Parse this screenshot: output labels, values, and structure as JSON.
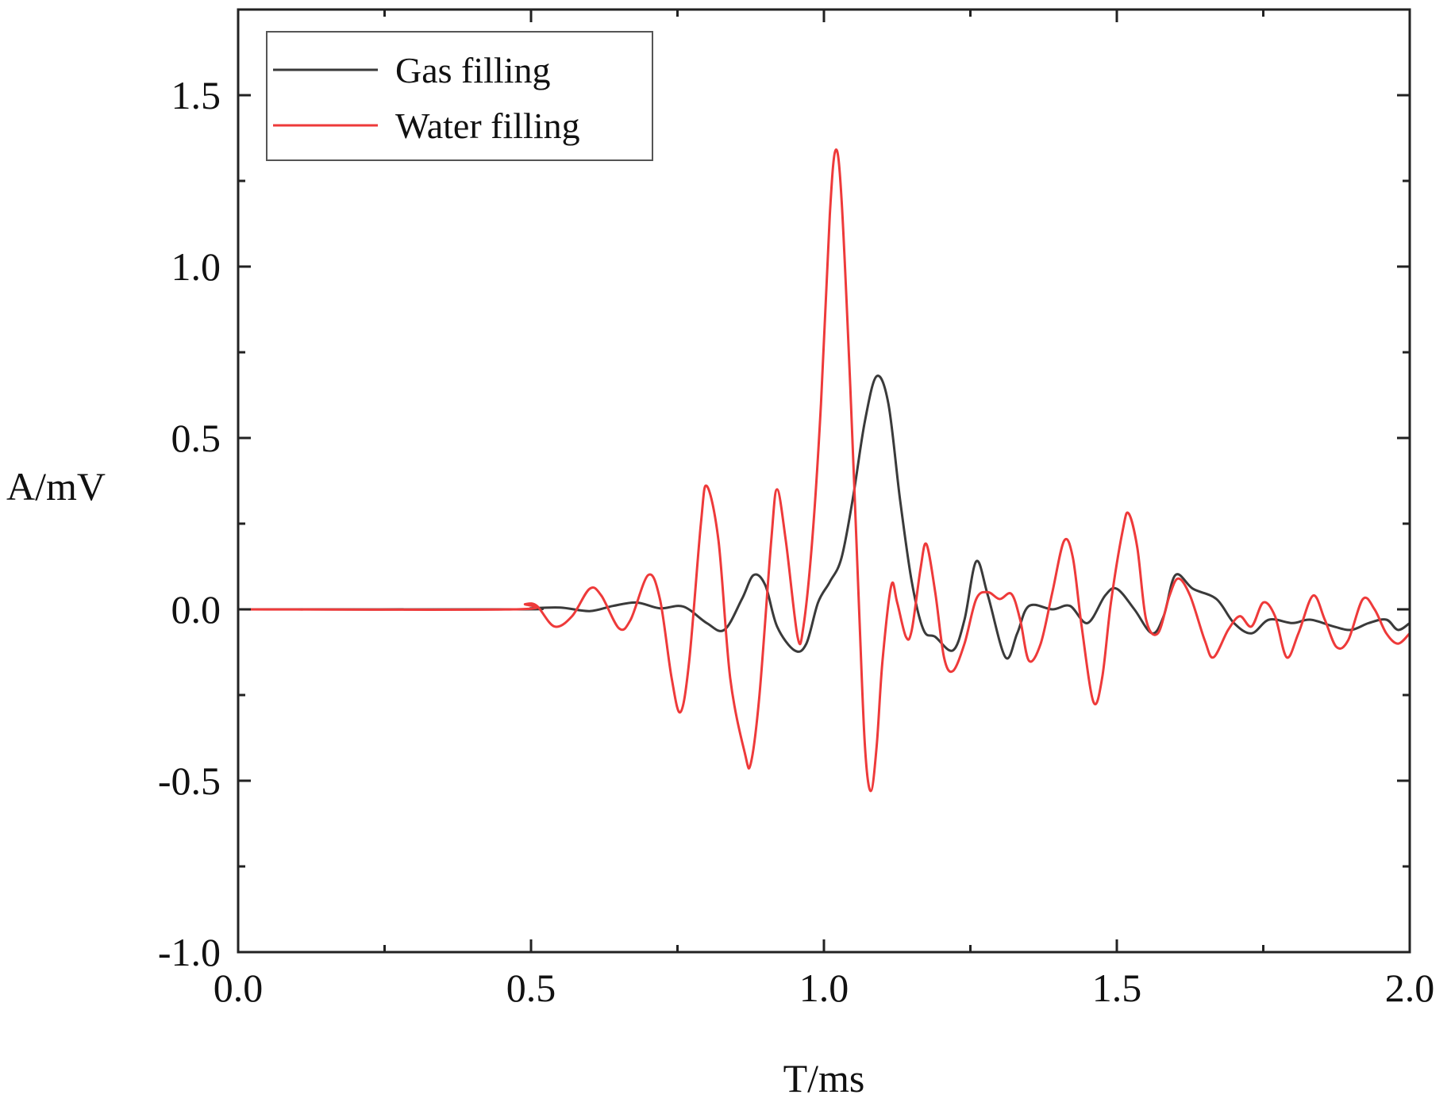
{
  "chart_data": {
    "type": "line",
    "xlabel": "T/ms",
    "ylabel": "A/mV",
    "xlim": [
      0.0,
      2.0
    ],
    "ylim": [
      -1.0,
      1.75
    ],
    "x_ticks": [
      "0.0",
      "0.5",
      "1.0",
      "1.5",
      "2.0"
    ],
    "y_ticks": [
      "-1.0",
      "-0.5",
      "0.0",
      "0.5",
      "1.0",
      "1.5"
    ],
    "grid": false,
    "legend_position": "top-left",
    "series": [
      {
        "name": "Gas filling",
        "color": "#3a3a3a",
        "points": [
          [
            0.0,
            0.0
          ],
          [
            0.48,
            0.0
          ],
          [
            0.5,
            0.003
          ],
          [
            0.55,
            0.005
          ],
          [
            0.6,
            -0.005
          ],
          [
            0.64,
            0.01
          ],
          [
            0.68,
            0.02
          ],
          [
            0.72,
            0.003
          ],
          [
            0.76,
            0.008
          ],
          [
            0.8,
            -0.04
          ],
          [
            0.83,
            -0.06
          ],
          [
            0.86,
            0.03
          ],
          [
            0.88,
            0.1
          ],
          [
            0.9,
            0.07
          ],
          [
            0.92,
            -0.05
          ],
          [
            0.95,
            -0.12
          ],
          [
            0.97,
            -0.1
          ],
          [
            0.99,
            0.02
          ],
          [
            1.01,
            0.08
          ],
          [
            1.03,
            0.15
          ],
          [
            1.05,
            0.33
          ],
          [
            1.07,
            0.55
          ],
          [
            1.09,
            0.68
          ],
          [
            1.11,
            0.6
          ],
          [
            1.13,
            0.32
          ],
          [
            1.15,
            0.08
          ],
          [
            1.17,
            -0.06
          ],
          [
            1.19,
            -0.08
          ],
          [
            1.22,
            -0.12
          ],
          [
            1.24,
            -0.03
          ],
          [
            1.26,
            0.14
          ],
          [
            1.28,
            0.04
          ],
          [
            1.31,
            -0.14
          ],
          [
            1.33,
            -0.07
          ],
          [
            1.35,
            0.01
          ],
          [
            1.39,
            0.0
          ],
          [
            1.42,
            0.01
          ],
          [
            1.45,
            -0.04
          ],
          [
            1.48,
            0.04
          ],
          [
            1.5,
            0.06
          ],
          [
            1.53,
            0.0
          ],
          [
            1.56,
            -0.07
          ],
          [
            1.58,
            -0.02
          ],
          [
            1.6,
            0.1
          ],
          [
            1.63,
            0.06
          ],
          [
            1.67,
            0.03
          ],
          [
            1.7,
            -0.04
          ],
          [
            1.73,
            -0.07
          ],
          [
            1.76,
            -0.03
          ],
          [
            1.8,
            -0.04
          ],
          [
            1.83,
            -0.03
          ],
          [
            1.87,
            -0.05
          ],
          [
            1.9,
            -0.06
          ],
          [
            1.93,
            -0.04
          ],
          [
            1.96,
            -0.03
          ],
          [
            1.98,
            -0.06
          ],
          [
            2.0,
            -0.04
          ]
        ]
      },
      {
        "name": "Water filling",
        "color": "#ee3a3a",
        "points": [
          [
            0.0,
            0.0
          ],
          [
            0.47,
            0.0
          ],
          [
            0.49,
            0.015
          ],
          [
            0.51,
            0.01
          ],
          [
            0.54,
            -0.05
          ],
          [
            0.57,
            -0.02
          ],
          [
            0.6,
            0.06
          ],
          [
            0.62,
            0.04
          ],
          [
            0.65,
            -0.055
          ],
          [
            0.67,
            -0.03
          ],
          [
            0.7,
            0.1
          ],
          [
            0.72,
            0.03
          ],
          [
            0.74,
            -0.2
          ],
          [
            0.755,
            -0.3
          ],
          [
            0.77,
            -0.15
          ],
          [
            0.79,
            0.25
          ],
          [
            0.8,
            0.36
          ],
          [
            0.82,
            0.2
          ],
          [
            0.84,
            -0.2
          ],
          [
            0.865,
            -0.42
          ],
          [
            0.875,
            -0.45
          ],
          [
            0.89,
            -0.25
          ],
          [
            0.91,
            0.2
          ],
          [
            0.92,
            0.35
          ],
          [
            0.935,
            0.2
          ],
          [
            0.955,
            -0.08
          ],
          [
            0.965,
            -0.05
          ],
          [
            0.98,
            0.2
          ],
          [
            0.995,
            0.6
          ],
          [
            1.01,
            1.15
          ],
          [
            1.02,
            1.34
          ],
          [
            1.03,
            1.2
          ],
          [
            1.045,
            0.65
          ],
          [
            1.06,
            0.0
          ],
          [
            1.07,
            -0.4
          ],
          [
            1.08,
            -0.53
          ],
          [
            1.09,
            -0.4
          ],
          [
            1.1,
            -0.15
          ],
          [
            1.115,
            0.07
          ],
          [
            1.125,
            0.02
          ],
          [
            1.14,
            -0.08
          ],
          [
            1.15,
            -0.06
          ],
          [
            1.165,
            0.12
          ],
          [
            1.175,
            0.19
          ],
          [
            1.19,
            0.05
          ],
          [
            1.205,
            -0.14
          ],
          [
            1.22,
            -0.18
          ],
          [
            1.24,
            -0.1
          ],
          [
            1.26,
            0.03
          ],
          [
            1.28,
            0.05
          ],
          [
            1.3,
            0.03
          ],
          [
            1.32,
            0.045
          ],
          [
            1.335,
            -0.03
          ],
          [
            1.35,
            -0.15
          ],
          [
            1.37,
            -0.1
          ],
          [
            1.39,
            0.05
          ],
          [
            1.41,
            0.2
          ],
          [
            1.425,
            0.15
          ],
          [
            1.44,
            -0.05
          ],
          [
            1.46,
            -0.27
          ],
          [
            1.475,
            -0.2
          ],
          [
            1.49,
            0.02
          ],
          [
            1.51,
            0.23
          ],
          [
            1.52,
            0.28
          ],
          [
            1.535,
            0.18
          ],
          [
            1.55,
            -0.03
          ],
          [
            1.57,
            -0.07
          ],
          [
            1.59,
            0.04
          ],
          [
            1.605,
            0.09
          ],
          [
            1.625,
            0.04
          ],
          [
            1.65,
            -0.09
          ],
          [
            1.665,
            -0.14
          ],
          [
            1.69,
            -0.06
          ],
          [
            1.71,
            -0.02
          ],
          [
            1.73,
            -0.05
          ],
          [
            1.75,
            0.02
          ],
          [
            1.77,
            -0.02
          ],
          [
            1.79,
            -0.14
          ],
          [
            1.81,
            -0.07
          ],
          [
            1.835,
            0.04
          ],
          [
            1.855,
            -0.03
          ],
          [
            1.875,
            -0.11
          ],
          [
            1.895,
            -0.09
          ],
          [
            1.92,
            0.03
          ],
          [
            1.94,
            0.0
          ],
          [
            1.96,
            -0.07
          ],
          [
            1.98,
            -0.1
          ],
          [
            2.0,
            -0.07
          ]
        ]
      }
    ]
  }
}
